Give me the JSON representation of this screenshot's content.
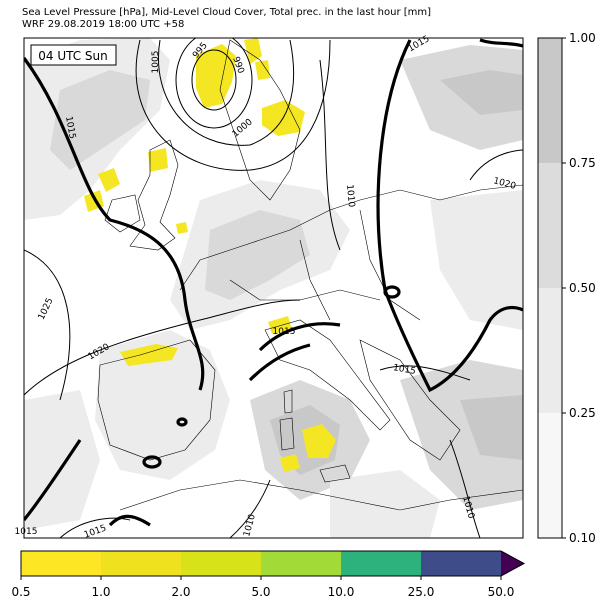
{
  "header": {
    "title_line1": "Sea Level Pressure [hPa], Mid-Level Cloud Cover, Total prec. in the last hour [mm]",
    "title_line2": "WRF 29.08.2019 18:00 UTC +58"
  },
  "map": {
    "time_label": "04 UTC Sun",
    "isobar_labels": [
      "995",
      "990",
      "1005",
      "1000",
      "1015",
      "1015",
      "1015",
      "1010",
      "1020",
      "1025",
      "1020",
      "1015",
      "1015",
      "1015",
      "1010",
      "1010"
    ],
    "colors": {
      "land": "#ffffff",
      "cloud_light": "#ececec",
      "cloud_mid": "#d9d9d9",
      "cloud_dark": "#c8c8c8",
      "precip": "#f5e623",
      "isobar": "#000000"
    }
  },
  "cloud_colorbar": {
    "ticks": [
      "1.00",
      "0.75",
      "0.50",
      "0.25",
      "0.10"
    ],
    "colors": [
      "#c8c8c8",
      "#dcdcdc",
      "#ebebeb",
      "#f7f7f7"
    ]
  },
  "precip_colorbar": {
    "ticks": [
      "0.5",
      "1.0",
      "2.0",
      "5.0",
      "10.0",
      "25.0",
      "50.0"
    ],
    "colors": [
      "#fde725",
      "#f0e11e",
      "#d8e219",
      "#a2da37",
      "#2db27d",
      "#3e4c8a",
      "#440154"
    ]
  }
}
